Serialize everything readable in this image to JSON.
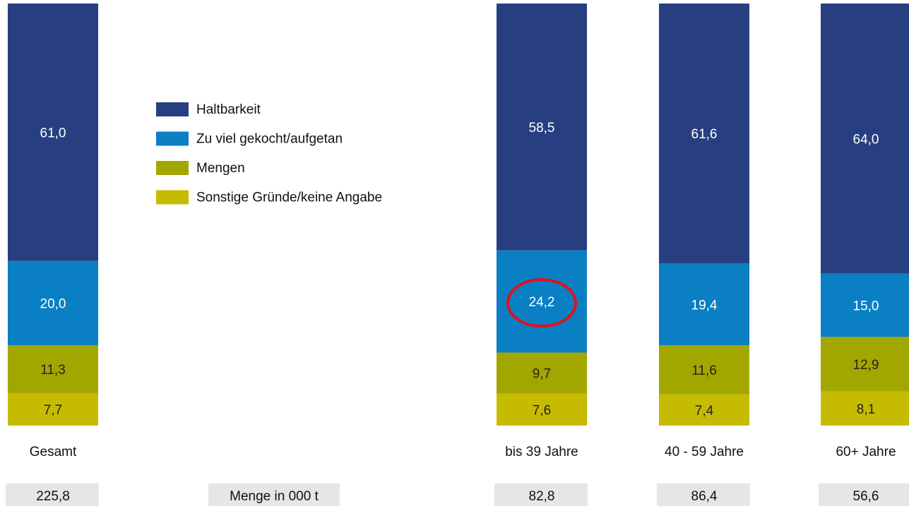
{
  "chart_data": {
    "type": "stacked_bar_100",
    "categories": [
      "Gesamt",
      "bis 39 Jahre",
      "40 - 59 Jahre",
      "60+ Jahre"
    ],
    "ylim": [
      0,
      100
    ],
    "series": [
      {
        "name": "Sonstige Gründe/keine Angabe",
        "color": "#c6bb00",
        "values": [
          7.7,
          7.6,
          7.4,
          8.1
        ],
        "value_labels": [
          "7,7",
          "7,6",
          "7,4",
          "8,1"
        ]
      },
      {
        "name": "Mengen",
        "color": "#a2a700",
        "values": [
          11.3,
          9.7,
          11.6,
          12.9
        ],
        "value_labels": [
          "11,3",
          "9,7",
          "11,6",
          "12,9"
        ]
      },
      {
        "name": "Zu viel gekocht/aufgetan",
        "color": "#0a7fc4",
        "values": [
          20.0,
          24.2,
          19.4,
          15.0
        ],
        "value_labels": [
          "20,0",
          "24,2",
          "19,4",
          "15,0"
        ]
      },
      {
        "name": "Haltbarkeit",
        "color": "#273f80",
        "values": [
          61.0,
          58.5,
          61.6,
          64.0
        ],
        "value_labels": [
          "61,0",
          "58,5",
          "61,6",
          "64,0"
        ]
      }
    ],
    "legend_order": [
      "Haltbarkeit",
      "Zu viel gekocht/aufgetan",
      "Mengen",
      "Sonstige Gründe/keine Angabe"
    ],
    "totals_label": "Menge in 000 t",
    "totals": [
      "225,8",
      "82,8",
      "86,4",
      "56,6"
    ]
  }
}
